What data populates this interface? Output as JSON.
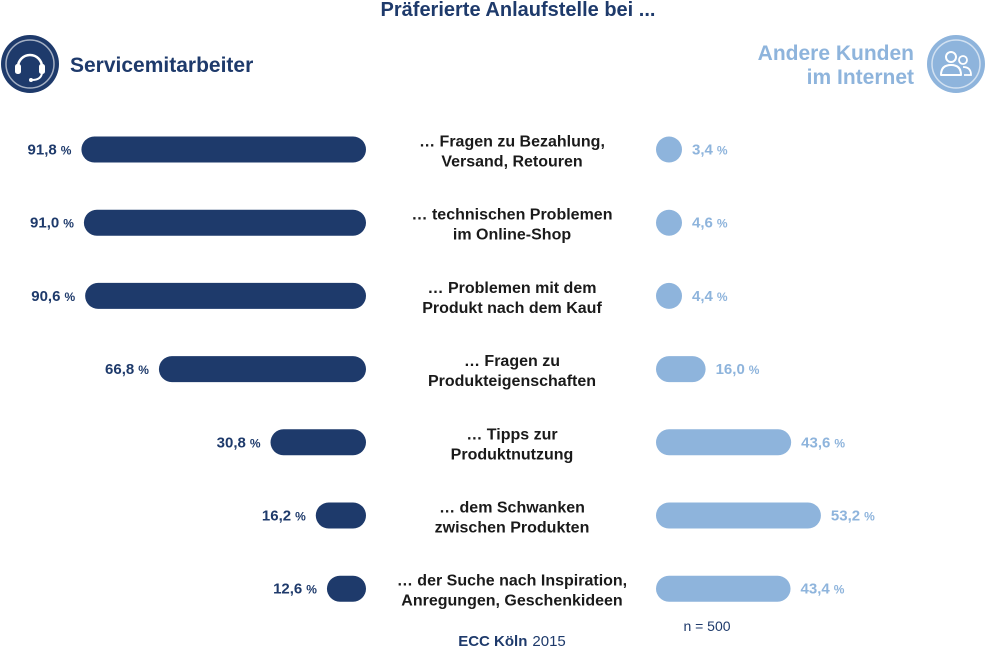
{
  "chart_data": {
    "type": "bar",
    "title": "Präferierte Anlaufstelle bei ...",
    "unit": "%",
    "categories": [
      [
        "… Fragen zu Bezahlung,",
        "Versand, Retouren"
      ],
      [
        "… technischen Problemen",
        "im Online-Shop"
      ],
      [
        "… Problemen mit dem",
        "Produkt nach dem Kauf"
      ],
      [
        "… Fragen zu",
        "Produkteigenschaften"
      ],
      [
        "… Tipps zur",
        "Produktnutzung"
      ],
      [
        "… dem Schwanken",
        "zwischen Produkten"
      ],
      [
        "… der Suche nach Inspiration,",
        "Anregungen, Geschenkideen"
      ]
    ],
    "series": [
      {
        "name": "Servicemitarbeiter",
        "labels": [
          "91,8",
          "91,0",
          "90,6",
          "66,8",
          "30,8",
          "16,2",
          "12,6"
        ],
        "values": [
          91.8,
          91.0,
          90.6,
          66.8,
          30.8,
          16.2,
          12.6
        ],
        "color": "#1e3a6b",
        "icon": "headset-icon"
      },
      {
        "name": "Andere Kunden im Internet",
        "name_lines": [
          "Andere Kunden",
          "im Internet"
        ],
        "labels": [
          "3,4",
          "4,6",
          "4,4",
          "16,0",
          "43,6",
          "53,2",
          "43,4"
        ],
        "values": [
          3.4,
          4.6,
          4.4,
          16.0,
          43.6,
          53.2,
          43.4
        ],
        "color": "#8eb4dc",
        "icon": "people-icon"
      }
    ],
    "sample_note": "n = 500",
    "source": {
      "bold": "ECC Köln",
      "regular": "2015"
    }
  }
}
